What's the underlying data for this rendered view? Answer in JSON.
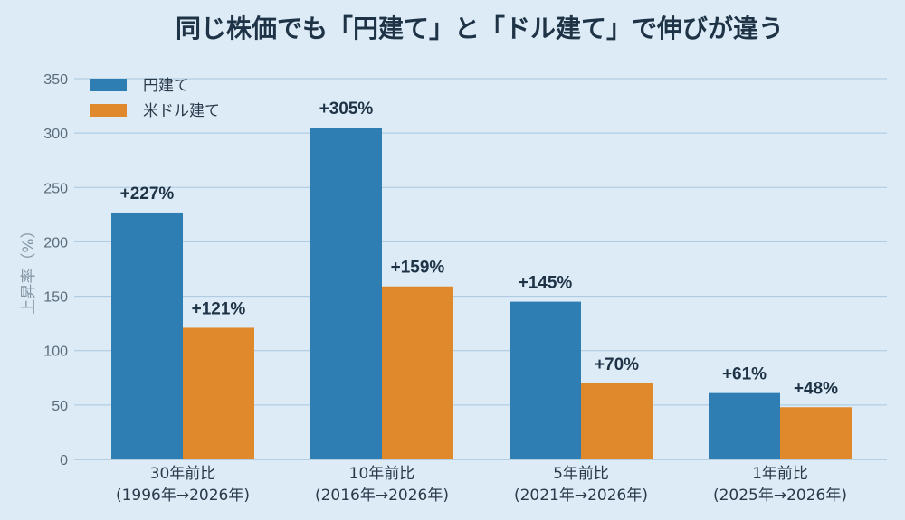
{
  "colors": {
    "background": "#dcebf6",
    "yen": "#2e7eb4",
    "usd": "#e0892c"
  },
  "chart_data": {
    "type": "bar",
    "title": "同じ株価でも「円建て」と「ドル建て」で伸びが違う",
    "xlabel": "",
    "ylabel": "上昇率（%）",
    "ylim": [
      0,
      350
    ],
    "yticks": [
      0,
      50,
      100,
      150,
      200,
      250,
      300,
      350
    ],
    "grid": true,
    "legend_position": "top-left",
    "categories": [
      [
        "30年前比",
        "(1996年→2026年)"
      ],
      [
        "10年前比",
        "(2016年→2026年)"
      ],
      [
        "5年前比",
        "(2021年→2026年)"
      ],
      [
        "1年前比",
        "(2025年→2026年)"
      ]
    ],
    "series": [
      {
        "name": "円建て",
        "color": "#2e7eb4",
        "values": [
          227,
          305,
          145,
          61
        ],
        "labels": [
          "+227%",
          "+305%",
          "+145%",
          "+61%"
        ]
      },
      {
        "name": "米ドル建て",
        "color": "#e0892c",
        "values": [
          121,
          159,
          70,
          48
        ],
        "labels": [
          "+121%",
          "+159%",
          "+70%",
          "+48%"
        ]
      }
    ]
  }
}
